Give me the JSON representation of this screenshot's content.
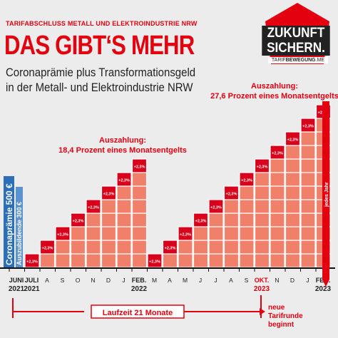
{
  "header": {
    "kicker": "TARIFABSCHLUSS METALL UND ELEKTROINDUSTRIE NRW",
    "title": "DAS GIBT‘S MEHR",
    "subtitle_line1": "Coronaprämie plus Transformationsgeld",
    "subtitle_line2": "in der Metall- und Elektroindustrie NRW"
  },
  "logo": {
    "line1": "ZUKUNFT",
    "line2": "SICHERN.",
    "tag_left": "TARIF",
    "tag_bold": "BEWEGUNG",
    "tag_right": ".ME",
    "icon": "red-banner-logo"
  },
  "colors": {
    "red": "#e3000f",
    "bar": "#f0806a",
    "bar_stroke": "#ffffff",
    "blue": "#2a6fb8",
    "arrow": "#e3000f",
    "background": "#ececec"
  },
  "labels": {
    "corona": "Coronaprämie 500 €",
    "azubi": "Auszubildende 300 €",
    "jedes_jahr": "jedes Jahr",
    "step": "+2,3%",
    "payout1_line1": "Auszahlung:",
    "payout1_line2": "18,4 Prozent eines Monatsentgelts",
    "payout2_line1": "Auszahlung:",
    "payout2_line2": "27,6 Prozent eines Monatsentgelts",
    "laufzeit": "Laufzeit 21 Monate",
    "neue_line1": "neue",
    "neue_line2": "Tarifrunde",
    "neue_line3": "beginnt"
  },
  "chart_data": {
    "type": "bar",
    "x_axis": {
      "months": [
        "JUNI",
        "JULI",
        "A",
        "S",
        "O",
        "N",
        "D",
        "J",
        "FEB.",
        "M",
        "A",
        "M",
        "J",
        "J",
        "A",
        "S",
        "OKT.",
        "N",
        "D",
        "J",
        "FEB."
      ],
      "years": [
        "2021",
        "2021",
        "",
        "",
        "",
        "",
        "",
        "",
        "2022",
        "",
        "",
        "",
        "",
        "",
        "",
        "",
        "2023",
        "",
        "",
        "",
        "2023"
      ]
    },
    "series": [
      {
        "values": [
          0,
          1,
          2,
          3,
          4,
          5,
          6,
          7,
          8,
          1,
          2,
          3,
          4,
          5,
          6,
          7,
          8,
          9,
          10,
          11,
          12
        ]
      }
    ],
    "unit": "+2,3%",
    "annotations": [
      "Auszahlung: 18,4 Prozent eines Monatsentgelts",
      "Auszahlung: 27,6 Prozent eines Monatsentgelts"
    ]
  }
}
